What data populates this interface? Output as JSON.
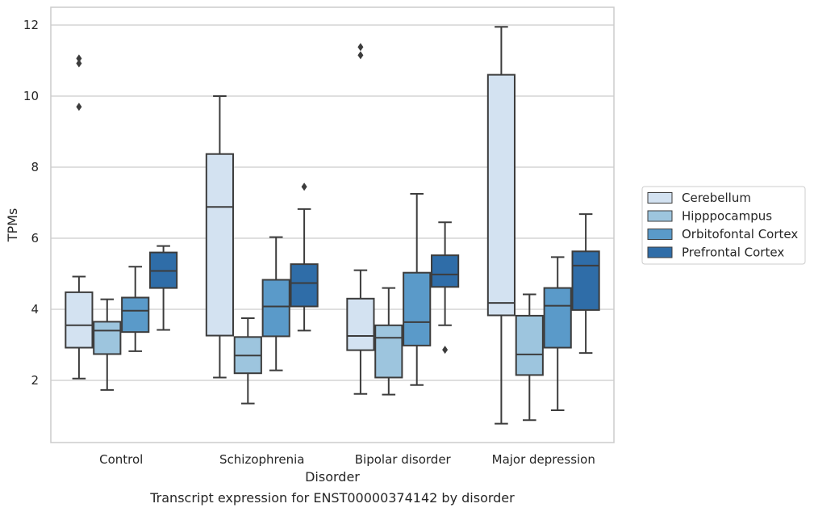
{
  "caption": "Transcript expression for ENST00000374142 by disorder",
  "chart_data": {
    "type": "box",
    "xlabel": "Disorder",
    "ylabel": "TPMs",
    "ylim": [
      0.25,
      12.5
    ],
    "yticks": [
      2,
      4,
      6,
      8,
      10,
      12
    ],
    "grid": "horizontal",
    "legend_position": "right",
    "categories": [
      "Control",
      "Schizophrenia",
      "Bipolar disorder",
      "Major depression"
    ],
    "series": [
      {
        "name": "Cerebellum",
        "color": "#d3e2f1",
        "boxes": [
          {
            "whislo": 2.05,
            "q1": 2.92,
            "med": 3.55,
            "q3": 4.48,
            "whishi": 4.92,
            "fliers": [
              9.7,
              10.92,
              11.06
            ]
          },
          {
            "whislo": 2.08,
            "q1": 3.26,
            "med": 6.88,
            "q3": 8.37,
            "whishi": 10.0,
            "fliers": []
          },
          {
            "whislo": 1.62,
            "q1": 2.85,
            "med": 3.25,
            "q3": 4.3,
            "whishi": 5.1,
            "fliers": [
              11.15,
              11.38
            ]
          },
          {
            "whislo": 0.78,
            "q1": 3.83,
            "med": 4.18,
            "q3": 10.6,
            "whishi": 11.95,
            "fliers": []
          }
        ]
      },
      {
        "name": "Hipppocampus",
        "color": "#9dc5de",
        "boxes": [
          {
            "whislo": 1.73,
            "q1": 2.74,
            "med": 3.4,
            "q3": 3.65,
            "whishi": 4.28,
            "fliers": []
          },
          {
            "whislo": 1.35,
            "q1": 2.2,
            "med": 2.7,
            "q3": 3.22,
            "whishi": 3.75,
            "fliers": []
          },
          {
            "whislo": 1.6,
            "q1": 2.08,
            "med": 3.2,
            "q3": 3.55,
            "whishi": 4.6,
            "fliers": []
          },
          {
            "whislo": 0.88,
            "q1": 2.15,
            "med": 2.73,
            "q3": 3.82,
            "whishi": 4.42,
            "fliers": []
          }
        ]
      },
      {
        "name": "Orbitofontal Cortex",
        "color": "#5a9ac9",
        "boxes": [
          {
            "whislo": 2.82,
            "q1": 3.36,
            "med": 3.96,
            "q3": 4.33,
            "whishi": 5.2,
            "fliers": []
          },
          {
            "whislo": 2.28,
            "q1": 3.24,
            "med": 4.08,
            "q3": 4.83,
            "whishi": 6.03,
            "fliers": []
          },
          {
            "whislo": 1.87,
            "q1": 2.98,
            "med": 3.64,
            "q3": 5.03,
            "whishi": 7.25,
            "fliers": []
          },
          {
            "whislo": 1.16,
            "q1": 2.92,
            "med": 4.1,
            "q3": 4.6,
            "whishi": 5.47,
            "fliers": []
          }
        ]
      },
      {
        "name": "Prefrontal Cortex",
        "color": "#2f6da8",
        "boxes": [
          {
            "whislo": 3.42,
            "q1": 4.6,
            "med": 5.08,
            "q3": 5.6,
            "whishi": 5.78,
            "fliers": []
          },
          {
            "whislo": 3.4,
            "q1": 4.08,
            "med": 4.74,
            "q3": 5.27,
            "whishi": 6.82,
            "fliers": [
              7.45
            ]
          },
          {
            "whislo": 3.55,
            "q1": 4.63,
            "med": 4.98,
            "q3": 5.52,
            "whishi": 6.45,
            "fliers": [
              2.86
            ]
          },
          {
            "whislo": 2.77,
            "q1": 3.98,
            "med": 5.23,
            "q3": 5.63,
            "whishi": 6.68,
            "fliers": []
          }
        ]
      }
    ]
  }
}
